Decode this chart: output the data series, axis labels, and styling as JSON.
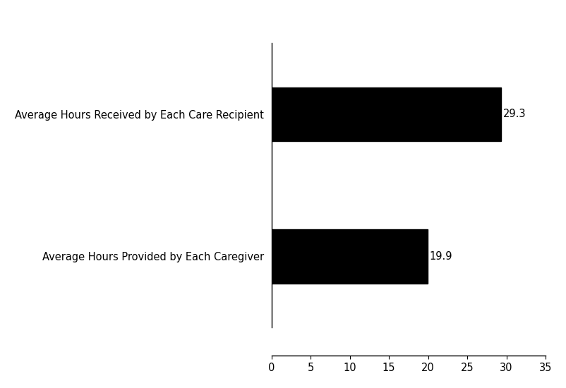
{
  "categories": [
    "Average Hours Provided by Each Caregiver",
    "Average Hours Received by Each Care Recipient"
  ],
  "values": [
    19.9,
    29.3
  ],
  "bar_color": "#000000",
  "bar_labels": [
    "19.9",
    "29.3"
  ],
  "xlim": [
    0,
    35
  ],
  "xticks": [
    0,
    5,
    10,
    15,
    20,
    25,
    30,
    35
  ],
  "background_color": "#ffffff",
  "label_fontsize": 10.5,
  "tick_fontsize": 10.5,
  "bar_height": 0.38,
  "ylim": [
    -0.7,
    1.7
  ]
}
